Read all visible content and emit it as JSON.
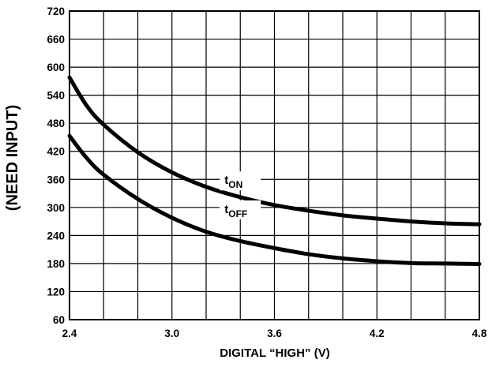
{
  "chart_data": {
    "type": "line",
    "title": "",
    "xlabel": "DIGITAL “HIGH” (V)",
    "ylabel": "(NEED INPUT)",
    "xlim": [
      2.4,
      4.8
    ],
    "ylim": [
      60,
      720
    ],
    "xticks": [
      "2.4",
      "3.0",
      "3.6",
      "4.2",
      "4.8"
    ],
    "xtick_values": [
      2.4,
      3.0,
      3.6,
      4.2,
      4.8
    ],
    "yticks": [
      "60",
      "120",
      "180",
      "240",
      "300",
      "360",
      "420",
      "480",
      "540",
      "600",
      "660",
      "720"
    ],
    "ytick_values": [
      60,
      120,
      180,
      240,
      300,
      360,
      420,
      480,
      540,
      600,
      660,
      720
    ],
    "grid": true,
    "series": [
      {
        "name": "t_ON",
        "label_main": "t",
        "label_sub": "ON",
        "x": [
          2.4,
          2.5,
          2.6,
          2.8,
          3.0,
          3.2,
          3.4,
          3.6,
          3.8,
          4.0,
          4.2,
          4.4,
          4.6,
          4.8
        ],
        "values": [
          578,
          518,
          477,
          418,
          375,
          344,
          322,
          305,
          293,
          283,
          276,
          270,
          266,
          264
        ]
      },
      {
        "name": "t_OFF",
        "label_main": "t",
        "label_sub": "OFF",
        "x": [
          2.4,
          2.5,
          2.6,
          2.8,
          3.0,
          3.2,
          3.4,
          3.6,
          3.8,
          4.0,
          4.2,
          4.4,
          4.6,
          4.8
        ],
        "values": [
          453,
          406,
          370,
          318,
          278,
          248,
          228,
          213,
          200,
          191,
          185,
          181,
          180,
          179
        ]
      }
    ]
  }
}
